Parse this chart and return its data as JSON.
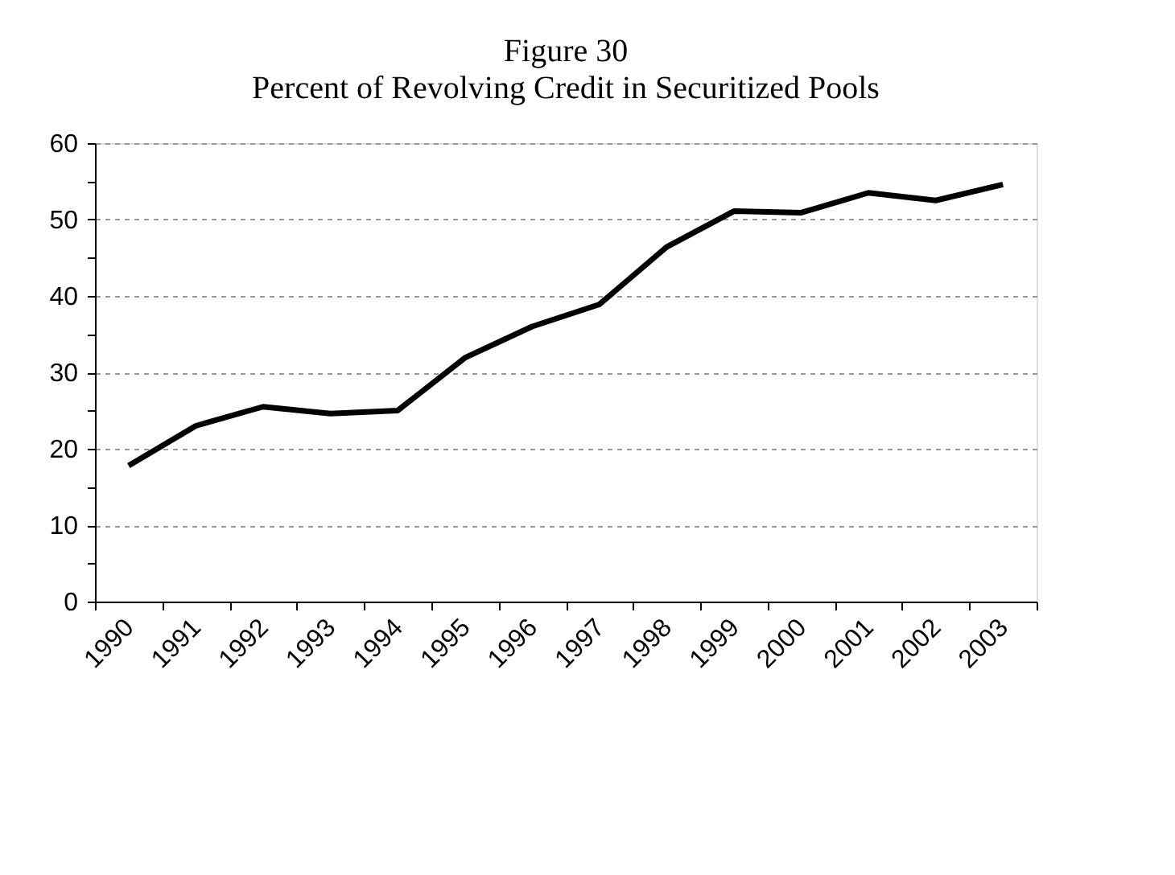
{
  "chart_data": {
    "type": "line",
    "title": "Figure 30",
    "subtitle": "Percent of Revolving Credit in Securitized Pools",
    "categories": [
      "1990",
      "1991",
      "1992",
      "1993",
      "1994",
      "1995",
      "1996",
      "1997",
      "1998",
      "1999",
      "2000",
      "2001",
      "2002",
      "2003"
    ],
    "series": [
      {
        "color": "#000000",
        "values": [
          17.8,
          23.0,
          25.5,
          24.6,
          25.0,
          31.9,
          36.0,
          38.9,
          46.4,
          51.1,
          50.9,
          53.5,
          52.5,
          54.6
        ]
      }
    ],
    "ylim": [
      0,
      60
    ],
    "yticks": [
      0,
      {
        "value": 5,
        "label": null
      },
      10,
      {
        "value": 15,
        "label": null
      },
      20,
      {
        "value": 25,
        "label": null
      },
      30,
      {
        "value": 35,
        "label": null
      },
      40,
      {
        "value": 45,
        "label": null
      },
      50,
      {
        "value": 55,
        "label": null
      },
      60
    ],
    "grid": "y",
    "marker": "none",
    "line_style": "solid"
  }
}
